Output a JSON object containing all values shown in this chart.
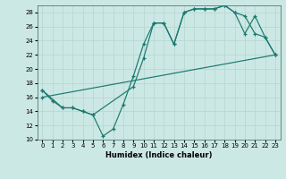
{
  "title": "",
  "xlabel": "Humidex (Indice chaleur)",
  "background_color": "#cce8e4",
  "grid_color": "#b8d8d4",
  "line_color": "#1a7870",
  "xlim": [
    -0.5,
    23.5
  ],
  "ylim": [
    10,
    29
  ],
  "xticks": [
    0,
    1,
    2,
    3,
    4,
    5,
    6,
    7,
    8,
    9,
    10,
    11,
    12,
    13,
    14,
    15,
    16,
    17,
    18,
    19,
    20,
    21,
    22,
    23
  ],
  "yticks": [
    10,
    12,
    14,
    16,
    18,
    20,
    22,
    24,
    26,
    28
  ],
  "line1_x": [
    0,
    1,
    2,
    3,
    4,
    5,
    6,
    7,
    8,
    9,
    10,
    11,
    12,
    13,
    14,
    15,
    16,
    17,
    18,
    19,
    20,
    21,
    22,
    23
  ],
  "line1_y": [
    17,
    15.5,
    14.5,
    14.5,
    14.0,
    13.5,
    10.5,
    11.5,
    15.0,
    19.0,
    23.5,
    26.5,
    26.5,
    23.5,
    28.0,
    28.5,
    28.5,
    28.5,
    29.0,
    28.0,
    25.0,
    27.5,
    24.5,
    22.0
  ],
  "line2_x": [
    0,
    2,
    3,
    4,
    5,
    9,
    10,
    11,
    12,
    13,
    14,
    15,
    16,
    17,
    18,
    19,
    20,
    21,
    22,
    23
  ],
  "line2_y": [
    17,
    14.5,
    14.5,
    14.0,
    13.5,
    17.5,
    21.5,
    26.5,
    26.5,
    23.5,
    28.0,
    28.5,
    28.5,
    28.5,
    29.0,
    28.0,
    27.5,
    25.0,
    24.5,
    22.0
  ],
  "line3_x": [
    0,
    23
  ],
  "line3_y": [
    16.0,
    22.0
  ]
}
